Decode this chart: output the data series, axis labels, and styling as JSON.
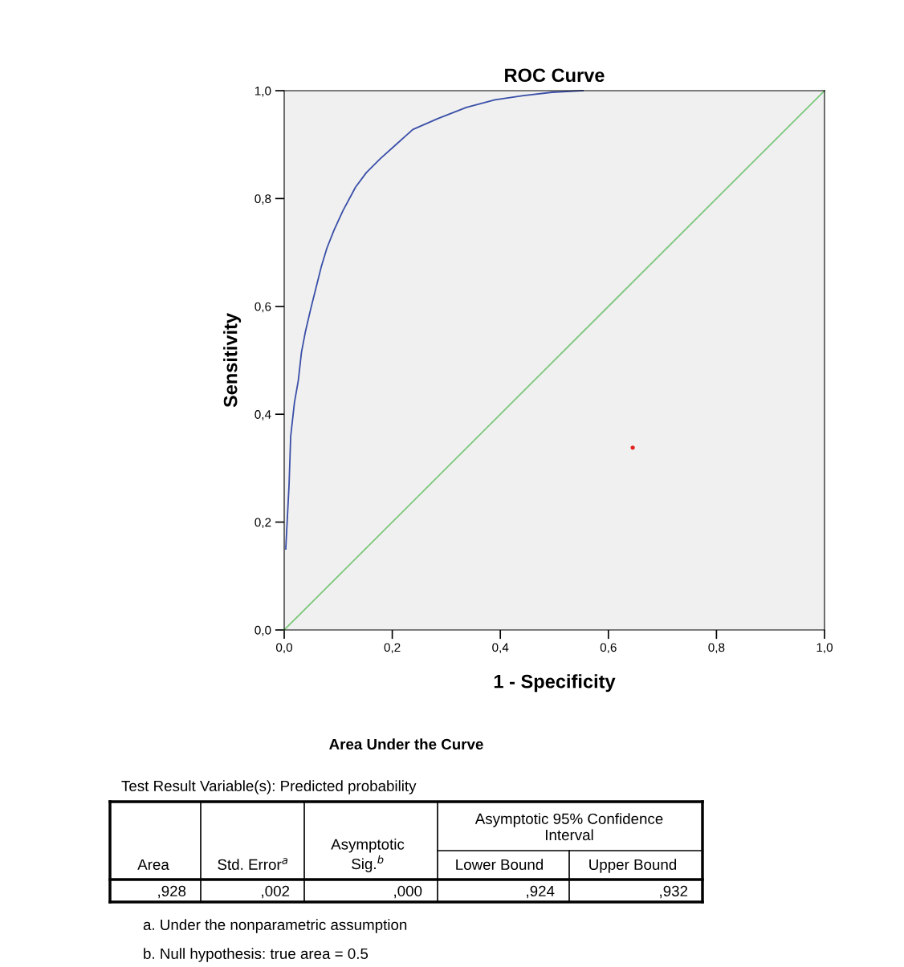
{
  "chart_data": {
    "type": "line",
    "title": "ROC Curve",
    "xlabel": "1 - Specificity",
    "ylabel": "Sensitivity",
    "xlim": [
      0,
      1
    ],
    "ylim": [
      0,
      1
    ],
    "xticks": [
      {
        "value": 0,
        "label": "0,0"
      },
      {
        "value": 0.2,
        "label": "0,2"
      },
      {
        "value": 0.4,
        "label": "0,4"
      },
      {
        "value": 0.6,
        "label": "0,6"
      },
      {
        "value": 0.8,
        "label": "0,8"
      },
      {
        "value": 1,
        "label": "1,0"
      }
    ],
    "yticks": [
      {
        "value": 0,
        "label": "0,0"
      },
      {
        "value": 0.2,
        "label": "0,2"
      },
      {
        "value": 0.4,
        "label": "0,4"
      },
      {
        "value": 0.6,
        "label": "0,6"
      },
      {
        "value": 0.8,
        "label": "0,8"
      },
      {
        "value": 1,
        "label": "1,0"
      }
    ],
    "series": [
      {
        "color": "#3a4fa8",
        "x": [
          0.003,
          0.003,
          0.009,
          0.012,
          0.019,
          0.026,
          0.032,
          0.039,
          0.049,
          0.059,
          0.069,
          0.079,
          0.092,
          0.109,
          0.132,
          0.152,
          0.178,
          0.208,
          0.238,
          0.284,
          0.337,
          0.39,
          0.443,
          0.496,
          0.553
        ],
        "values": [
          0.15,
          0.153,
          0.269,
          0.359,
          0.422,
          0.462,
          0.515,
          0.552,
          0.595,
          0.635,
          0.675,
          0.708,
          0.741,
          0.778,
          0.821,
          0.848,
          0.874,
          0.901,
          0.928,
          0.948,
          0.969,
          0.983,
          0.991,
          0.997,
          1.0
        ]
      },
      {
        "color": "#7cc87c",
        "x": [
          0,
          1
        ],
        "values": [
          0,
          1
        ]
      },
      {
        "type": "scatter",
        "color": "#e32020",
        "x": [
          0.645
        ],
        "values": [
          0.338
        ]
      }
    ],
    "annotations": [
      "Area Under the Curve",
      "Test Result Variable(s): Predicted probability",
      "Area",
      "Std. Error$^{a}$",
      "Asymptotic\nSig.$^{b}$",
      "Asymptotic 95% Confidence\nInterval",
      "Lower Bound",
      "Upper Bound",
      ",928",
      ",002",
      ",000",
      ",924",
      ",932",
      "a. Under the nonparametric assumption",
      "b. Null hypothesis: true area = 0.5"
    ]
  }
}
